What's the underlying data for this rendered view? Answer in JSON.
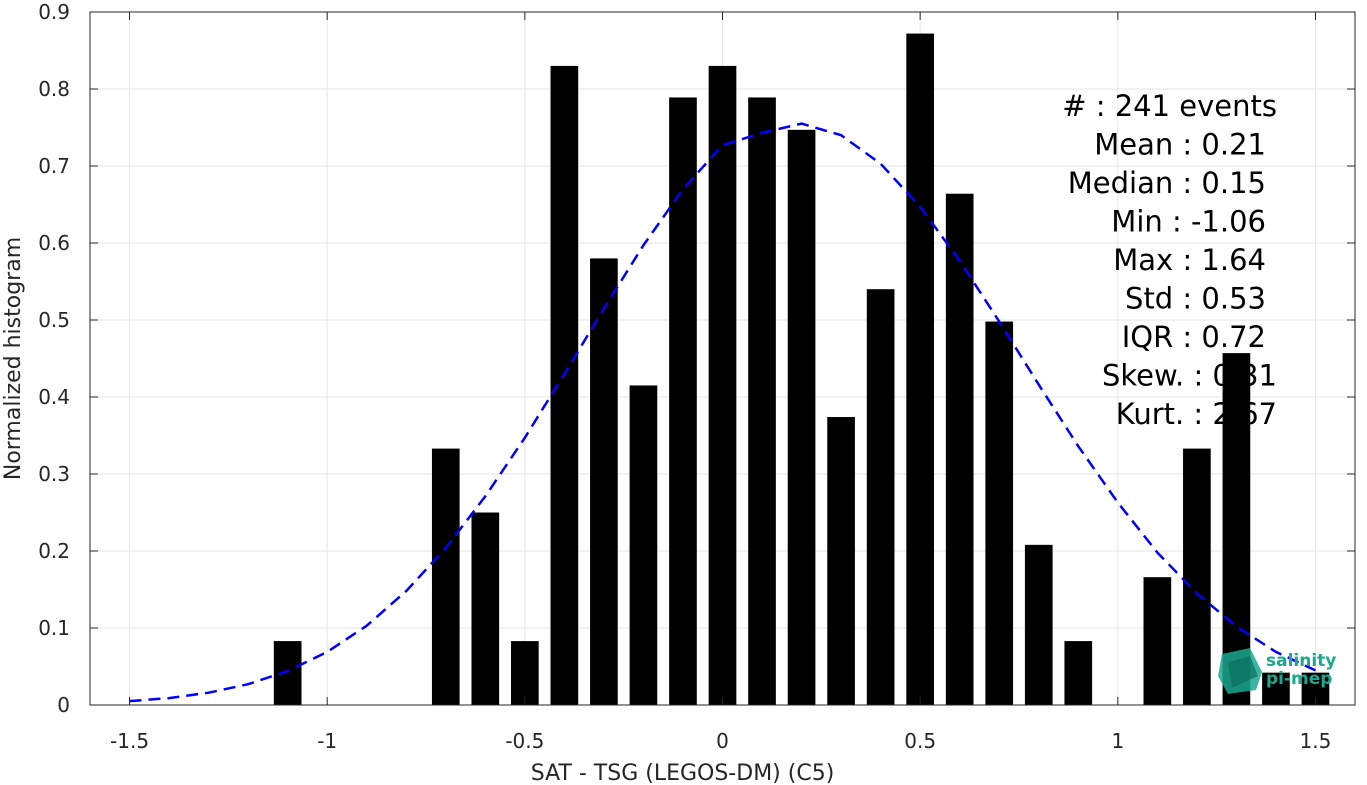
{
  "chart_data": {
    "type": "bar",
    "xlabel": "SAT - TSG (LEGOS-DM) (C5)",
    "ylabel": "Normalized histogram",
    "xlim": [
      -1.6,
      1.6
    ],
    "ylim": [
      0,
      0.9
    ],
    "xticks": [
      -1.5,
      -1,
      -0.5,
      0,
      0.5,
      1,
      1.5
    ],
    "xtick_labels": [
      "-1.5",
      "-1",
      "-0.5",
      "0",
      "0.5",
      "1",
      "1.5"
    ],
    "yticks": [
      0,
      0.1,
      0.2,
      0.3,
      0.4,
      0.5,
      0.6,
      0.7,
      0.8,
      0.9
    ],
    "ytick_labels": [
      "0",
      "0.1",
      "0.2",
      "0.3",
      "0.4",
      "0.5",
      "0.6",
      "0.7",
      "0.8",
      "0.9"
    ],
    "grid": true,
    "bar_color": "#000000",
    "curve_color": "#0000ff",
    "bars": {
      "x": [
        -1.1,
        -0.7,
        -0.6,
        -0.5,
        -0.4,
        -0.3,
        -0.2,
        -0.1,
        0.0,
        0.1,
        0.2,
        0.3,
        0.4,
        0.5,
        0.6,
        0.7,
        0.8,
        0.9,
        1.0,
        1.1,
        1.2,
        1.3,
        1.4,
        1.5
      ],
      "values": [
        0.083,
        0.333,
        0.25,
        0.083,
        0.83,
        0.58,
        0.415,
        0.789,
        0.83,
        0.789,
        0.747,
        0.374,
        0.54,
        0.872,
        0.664,
        0.498,
        0.208,
        0.083,
        0.0,
        0.166,
        0.333,
        0.457,
        0.042,
        0.042
      ]
    },
    "fit_curve": {
      "style": "dashed",
      "x": [
        -1.5,
        -1.4,
        -1.3,
        -1.2,
        -1.1,
        -1.0,
        -0.9,
        -0.8,
        -0.7,
        -0.6,
        -0.5,
        -0.4,
        -0.3,
        -0.2,
        -0.1,
        0.0,
        0.1,
        0.2,
        0.3,
        0.4,
        0.5,
        0.6,
        0.7,
        0.8,
        0.9,
        1.0,
        1.1,
        1.2,
        1.3,
        1.4,
        1.5
      ],
      "y": [
        0.005,
        0.009,
        0.016,
        0.027,
        0.044,
        0.069,
        0.103,
        0.148,
        0.204,
        0.271,
        0.347,
        0.43,
        0.515,
        0.597,
        0.67,
        0.727,
        0.743,
        0.755,
        0.74,
        0.703,
        0.647,
        0.577,
        0.498,
        0.416,
        0.336,
        0.263,
        0.198,
        0.145,
        0.102,
        0.069,
        0.045
      ]
    },
    "annotations": [
      "#  : 241 events",
      "Mean : 0.21",
      "Median : 0.15",
      "Min : -1.06",
      "Max : 1.64",
      "Std : 0.53",
      "IQR : 0.72",
      "Skew. : 0.31",
      "Kurt. : 2.67"
    ]
  },
  "logo": {
    "line1": "salinity",
    "line2": "pi-mep",
    "color": "#1aa88f"
  }
}
